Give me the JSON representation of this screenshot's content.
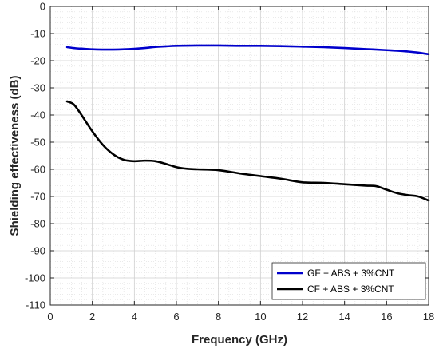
{
  "chart_data": {
    "type": "line",
    "xlabel": "Frequency (GHz)",
    "ylabel": "Shielding effectiveness (dB)",
    "xlim": [
      0,
      18
    ],
    "ylim": [
      -110,
      0
    ],
    "xticks": [
      0,
      2,
      4,
      6,
      8,
      10,
      12,
      14,
      16,
      18
    ],
    "yticks": [
      0,
      -10,
      -20,
      -30,
      -40,
      -50,
      -60,
      -70,
      -80,
      -90,
      -100,
      -110
    ],
    "grid": true,
    "minor_grid": true,
    "legend_position": "bottom-right",
    "series": [
      {
        "name": "GF + ABS + 3%CNT",
        "color": "#0000cc",
        "x": [
          0.8,
          1.2,
          1.6,
          2.0,
          2.5,
          3.0,
          3.5,
          4.0,
          4.5,
          5.0,
          5.5,
          6.0,
          7.0,
          8.0,
          9.0,
          10.0,
          11.0,
          12.0,
          13.0,
          14.0,
          15.0,
          16.0,
          16.5,
          17.0,
          17.5,
          18.0
        ],
        "y": [
          -15.0,
          -15.4,
          -15.6,
          -15.8,
          -15.9,
          -15.9,
          -15.8,
          -15.6,
          -15.3,
          -14.9,
          -14.7,
          -14.5,
          -14.4,
          -14.4,
          -14.5,
          -14.5,
          -14.6,
          -14.8,
          -15.0,
          -15.3,
          -15.7,
          -16.1,
          -16.3,
          -16.6,
          -17.0,
          -17.6
        ]
      },
      {
        "name": "CF + ABS + 3%CNT",
        "color": "#000000",
        "x": [
          0.8,
          1.1,
          1.4,
          2.0,
          2.5,
          3.0,
          3.5,
          4.0,
          4.5,
          5.0,
          5.5,
          6.0,
          6.5,
          7.0,
          8.0,
          9.0,
          10.0,
          11.0,
          12.0,
          13.0,
          14.0,
          15.0,
          15.5,
          16.0,
          16.5,
          17.0,
          17.5,
          18.0
        ],
        "y": [
          -35.0,
          -36.0,
          -39.0,
          -46.0,
          -51.0,
          -54.5,
          -56.5,
          -57.0,
          -56.8,
          -57.0,
          -58.0,
          -59.2,
          -59.8,
          -60.0,
          -60.3,
          -61.5,
          -62.5,
          -63.5,
          -64.8,
          -65.0,
          -65.5,
          -66.0,
          -66.2,
          -67.5,
          -68.8,
          -69.5,
          -70.0,
          -71.5
        ]
      }
    ]
  }
}
